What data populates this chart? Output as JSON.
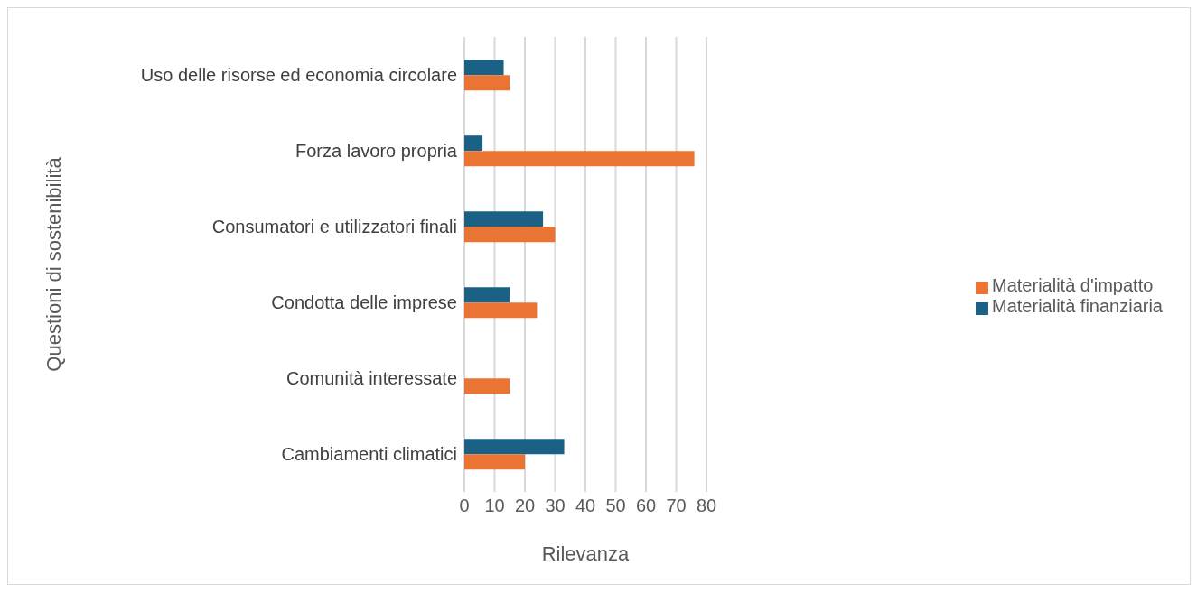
{
  "chart_data": {
    "type": "bar",
    "orientation": "horizontal",
    "xlabel": "Rilevanza",
    "ylabel": "Questioni di sostenibilità",
    "categories": [
      "Uso delle risorse ed economia circolare",
      "Forza lavoro propria",
      "Consumatori e utilizzatori finali",
      "Condotta delle imprese",
      "Comunità interessate",
      "Cambiamenti climatici"
    ],
    "series": [
      {
        "name": "Materialità finanziaria",
        "color": "#1a6185",
        "values": [
          13,
          6,
          26,
          15,
          null,
          33
        ]
      },
      {
        "name": "Materialità d'impatto",
        "color": "#e97434",
        "values": [
          15,
          76,
          30,
          24,
          15,
          20
        ]
      }
    ],
    "xlim": [
      0,
      80
    ],
    "xticks": [
      0,
      10,
      20,
      30,
      40,
      50,
      60,
      70,
      80
    ],
    "grid": "x",
    "legend": "right"
  }
}
